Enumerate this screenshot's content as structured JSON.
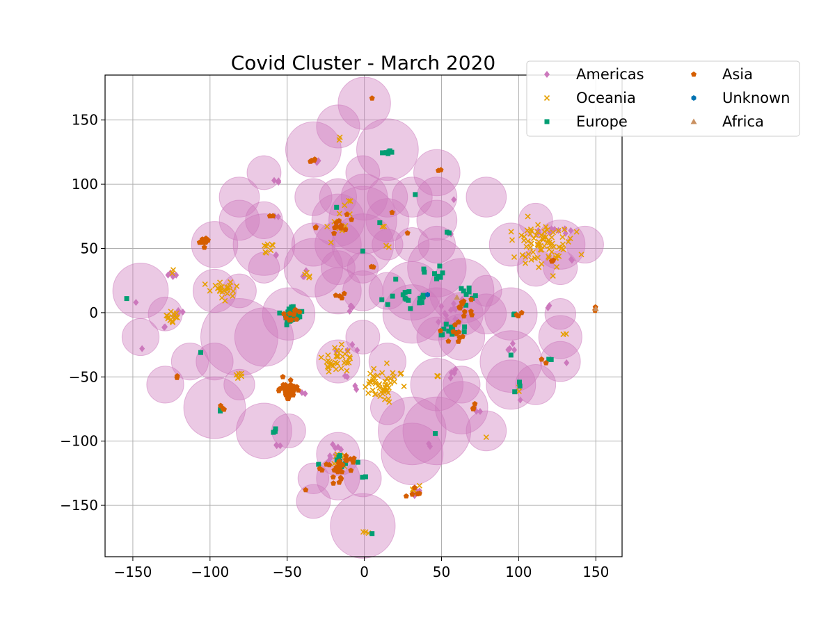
{
  "chart_data": {
    "type": "scatter",
    "title": "Covid Cluster - March 2020",
    "xlabel": "",
    "ylabel": "",
    "xlim": [
      -168,
      167
    ],
    "ylim": [
      -190,
      185
    ],
    "xticks": [
      -150,
      -100,
      -50,
      0,
      50,
      100,
      150
    ],
    "yticks": [
      -150,
      -100,
      -50,
      0,
      50,
      100,
      150
    ],
    "grid": true,
    "legend": {
      "placement": "top-right",
      "columns": 2
    },
    "bubble_color": "#CC78BC",
    "bubbles": [
      {
        "x": 0,
        "y": 163,
        "r": 17
      },
      {
        "x": -17,
        "y": 145,
        "r": 14
      },
      {
        "x": -33,
        "y": 127,
        "r": 18
      },
      {
        "x": 15,
        "y": 127,
        "r": 20
      },
      {
        "x": -1,
        "y": 109,
        "r": 11
      },
      {
        "x": 47,
        "y": 109,
        "r": 15
      },
      {
        "x": -65,
        "y": 109,
        "r": 11
      },
      {
        "x": -81,
        "y": 90,
        "r": 13
      },
      {
        "x": -33,
        "y": 90,
        "r": 12
      },
      {
        "x": -17,
        "y": 90,
        "r": 12
      },
      {
        "x": 0,
        "y": 90,
        "r": 15
      },
      {
        "x": 15,
        "y": 90,
        "r": 13
      },
      {
        "x": 31,
        "y": 90,
        "r": 13
      },
      {
        "x": 47,
        "y": 90,
        "r": 13
      },
      {
        "x": 79,
        "y": 90,
        "r": 13
      },
      {
        "x": -81,
        "y": 72,
        "r": 13
      },
      {
        "x": -65,
        "y": 72,
        "r": 12
      },
      {
        "x": -17,
        "y": 72,
        "r": 17
      },
      {
        "x": -1,
        "y": 72,
        "r": 22
      },
      {
        "x": 15,
        "y": 72,
        "r": 14
      },
      {
        "x": 47,
        "y": 72,
        "r": 13
      },
      {
        "x": 111,
        "y": 72,
        "r": 11
      },
      {
        "x": -97,
        "y": 53,
        "r": 15
      },
      {
        "x": -65,
        "y": 53,
        "r": 20
      },
      {
        "x": -33,
        "y": 53,
        "r": 14
      },
      {
        "x": -17,
        "y": 53,
        "r": 15
      },
      {
        "x": -1,
        "y": 53,
        "r": 20
      },
      {
        "x": 15,
        "y": 53,
        "r": 10
      },
      {
        "x": 31,
        "y": 53,
        "r": 11
      },
      {
        "x": 47,
        "y": 53,
        "r": 12
      },
      {
        "x": 95,
        "y": 53,
        "r": 14
      },
      {
        "x": 127,
        "y": 53,
        "r": 16
      },
      {
        "x": 143,
        "y": 53,
        "r": 12
      },
      {
        "x": -65,
        "y": 35,
        "r": 10
      },
      {
        "x": -33,
        "y": 35,
        "r": 19
      },
      {
        "x": -17,
        "y": 35,
        "r": 11
      },
      {
        "x": -1,
        "y": 35,
        "r": 10
      },
      {
        "x": 47,
        "y": 35,
        "r": 19
      },
      {
        "x": 111,
        "y": 35,
        "r": 12
      },
      {
        "x": 127,
        "y": 35,
        "r": 11
      },
      {
        "x": -145,
        "y": 17,
        "r": 18
      },
      {
        "x": -97,
        "y": 17,
        "r": 14
      },
      {
        "x": -81,
        "y": 17,
        "r": 11
      },
      {
        "x": -17,
        "y": 17,
        "r": 15
      },
      {
        "x": -1,
        "y": 17,
        "r": 13
      },
      {
        "x": 15,
        "y": 17,
        "r": 12
      },
      {
        "x": 31,
        "y": 17,
        "r": 19
      },
      {
        "x": 63,
        "y": 17,
        "r": 21
      },
      {
        "x": 79,
        "y": 17,
        "r": 10
      },
      {
        "x": -129,
        "y": -1,
        "r": 11
      },
      {
        "x": -49,
        "y": -1,
        "r": 17
      },
      {
        "x": 31,
        "y": -1,
        "r": 19
      },
      {
        "x": 47,
        "y": -1,
        "r": 17
      },
      {
        "x": 63,
        "y": -1,
        "r": 14
      },
      {
        "x": 79,
        "y": -1,
        "r": 13
      },
      {
        "x": 95,
        "y": -1,
        "r": 17
      },
      {
        "x": 127,
        "y": -1,
        "r": 10
      },
      {
        "x": -145,
        "y": -19,
        "r": 12
      },
      {
        "x": -81,
        "y": -19,
        "r": 25
      },
      {
        "x": -65,
        "y": -19,
        "r": 19
      },
      {
        "x": -1,
        "y": -19,
        "r": 11
      },
      {
        "x": 47,
        "y": -19,
        "r": 13
      },
      {
        "x": 63,
        "y": -19,
        "r": 15
      },
      {
        "x": 127,
        "y": -19,
        "r": 14
      },
      {
        "x": -113,
        "y": -38,
        "r": 12
      },
      {
        "x": -97,
        "y": -38,
        "r": 12
      },
      {
        "x": -17,
        "y": -38,
        "r": 14
      },
      {
        "x": 15,
        "y": -38,
        "r": 12
      },
      {
        "x": 95,
        "y": -38,
        "r": 20
      },
      {
        "x": 127,
        "y": -38,
        "r": 13
      },
      {
        "x": -129,
        "y": -56,
        "r": 12
      },
      {
        "x": -81,
        "y": -56,
        "r": 10
      },
      {
        "x": 47,
        "y": -56,
        "r": 17
      },
      {
        "x": 63,
        "y": -56,
        "r": 12
      },
      {
        "x": 95,
        "y": -56,
        "r": 16
      },
      {
        "x": 111,
        "y": -56,
        "r": 13
      },
      {
        "x": -97,
        "y": -74,
        "r": 20
      },
      {
        "x": 15,
        "y": -74,
        "r": 11
      },
      {
        "x": 63,
        "y": -74,
        "r": 17
      },
      {
        "x": -65,
        "y": -92,
        "r": 18
      },
      {
        "x": -49,
        "y": -92,
        "r": 11
      },
      {
        "x": 31,
        "y": -92,
        "r": 22
      },
      {
        "x": 47,
        "y": -92,
        "r": 22
      },
      {
        "x": 79,
        "y": -92,
        "r": 13
      },
      {
        "x": -17,
        "y": -110,
        "r": 14
      },
      {
        "x": 31,
        "y": -110,
        "r": 20
      },
      {
        "x": -33,
        "y": -129,
        "r": 10
      },
      {
        "x": -17,
        "y": -129,
        "r": 14
      },
      {
        "x": -1,
        "y": -129,
        "r": 12
      },
      {
        "x": -33,
        "y": -147,
        "r": 11
      },
      {
        "x": -1,
        "y": -166,
        "r": 21
      }
    ],
    "series": [
      {
        "name": "Americas",
        "marker": "diamond",
        "color": "#CC78BC",
        "clusters": [
          {
            "x": 131,
            "y": 63,
            "n": 4,
            "s": 2
          },
          {
            "x": 121,
            "y": 63,
            "n": 3,
            "s": 2
          },
          {
            "x": 111,
            "y": 63,
            "n": 2,
            "s": 2
          },
          {
            "x": 135,
            "y": 40,
            "n": 2,
            "s": 1
          },
          {
            "x": -57,
            "y": 103,
            "n": 3,
            "s": 1
          },
          {
            "x": -57,
            "y": 74,
            "n": 2,
            "s": 1
          },
          {
            "x": -57,
            "y": 46,
            "n": 2,
            "s": 1
          },
          {
            "x": -103,
            "y": 55,
            "n": 2,
            "s": 1
          },
          {
            "x": -124,
            "y": 30,
            "n": 5,
            "s": 2
          },
          {
            "x": -122,
            "y": 0,
            "n": 4,
            "s": 2
          },
          {
            "x": -128,
            "y": -12,
            "n": 2,
            "s": 1
          },
          {
            "x": -148,
            "y": 8,
            "n": 1,
            "s": 0
          },
          {
            "x": -144,
            "y": -28,
            "n": 1,
            "s": 0
          },
          {
            "x": -31,
            "y": 117,
            "n": 2,
            "s": 1
          },
          {
            "x": 58,
            "y": 88,
            "n": 1,
            "s": 0
          },
          {
            "x": -31,
            "y": 67,
            "n": 1,
            "s": 0
          },
          {
            "x": 56,
            "y": 62,
            "n": 2,
            "s": 1
          },
          {
            "x": -40,
            "y": 28,
            "n": 3,
            "s": 2
          },
          {
            "x": -9,
            "y": 6,
            "n": 4,
            "s": 2
          },
          {
            "x": 60,
            "y": 3,
            "n": 10,
            "s": 5
          },
          {
            "x": 50,
            "y": -4,
            "n": 6,
            "s": 3
          },
          {
            "x": -12,
            "y": -26,
            "n": 4,
            "s": 3
          },
          {
            "x": -5,
            "y": -58,
            "n": 2,
            "s": 1
          },
          {
            "x": -12,
            "y": -50,
            "n": 2,
            "s": 1
          },
          {
            "x": 56,
            "y": -46,
            "n": 5,
            "s": 2
          },
          {
            "x": 95,
            "y": -29,
            "n": 4,
            "s": 2
          },
          {
            "x": 101,
            "y": -68,
            "n": 1,
            "s": 0
          },
          {
            "x": 72,
            "y": -76,
            "n": 3,
            "s": 2
          },
          {
            "x": -57,
            "y": -104,
            "n": 3,
            "s": 1
          },
          {
            "x": 42,
            "y": -103,
            "n": 2,
            "s": 1
          },
          {
            "x": 33,
            "y": -138,
            "n": 5,
            "s": 2
          },
          {
            "x": -20,
            "y": -105,
            "n": 4,
            "s": 2
          },
          {
            "x": -22,
            "y": -113,
            "n": 4,
            "s": 2
          },
          {
            "x": 120,
            "y": 5,
            "n": 2,
            "s": 1
          },
          {
            "x": 131,
            "y": -39,
            "n": 1,
            "s": 0
          },
          {
            "x": -40,
            "y": -64,
            "n": 2,
            "s": 1
          }
        ]
      },
      {
        "name": "Oceania",
        "marker": "x",
        "color": "#E69F00",
        "clusters": [
          {
            "x": 117,
            "y": 52,
            "n": 75,
            "s": 9
          },
          {
            "x": -90,
            "y": 19,
            "n": 24,
            "s": 4
          },
          {
            "x": -125,
            "y": -4,
            "n": 14,
            "s": 3
          },
          {
            "x": -17,
            "y": -38,
            "n": 32,
            "s": 5
          },
          {
            "x": 12,
            "y": -55,
            "n": 48,
            "s": 7
          },
          {
            "x": -62,
            "y": 49,
            "n": 8,
            "s": 3
          },
          {
            "x": -37,
            "y": 30,
            "n": 4,
            "s": 2
          },
          {
            "x": -17,
            "y": 65,
            "n": 8,
            "s": 5
          },
          {
            "x": -10,
            "y": 88,
            "n": 4,
            "s": 5
          },
          {
            "x": -82,
            "y": -48,
            "n": 5,
            "s": 2
          },
          {
            "x": -124,
            "y": 32,
            "n": 2,
            "s": 1
          },
          {
            "x": 130,
            "y": -17,
            "n": 2,
            "s": 1
          },
          {
            "x": 100,
            "y": -60,
            "n": 2,
            "s": 1
          },
          {
            "x": 79,
            "y": -97,
            "n": 1,
            "s": 0
          },
          {
            "x": 15,
            "y": 52,
            "n": 2,
            "s": 1
          },
          {
            "x": -17,
            "y": 136,
            "n": 2,
            "s": 1
          },
          {
            "x": -16,
            "y": -115,
            "n": 8,
            "s": 4
          },
          {
            "x": 32,
            "y": -138,
            "n": 4,
            "s": 2
          },
          {
            "x": 48,
            "y": -50,
            "n": 3,
            "s": 1
          },
          {
            "x": 0,
            "y": -171,
            "n": 3,
            "s": 1
          },
          {
            "x": 12,
            "y": 68,
            "n": 2,
            "s": 1
          }
        ]
      },
      {
        "name": "Europe",
        "marker": "square",
        "color": "#029E73",
        "clusters": [
          {
            "x": -47,
            "y": -2,
            "n": 45,
            "s": 3
          },
          {
            "x": 55,
            "y": -15,
            "n": 12,
            "s": 4
          },
          {
            "x": 28,
            "y": 12,
            "n": 12,
            "s": 5
          },
          {
            "x": 45,
            "y": 30,
            "n": 8,
            "s": 4
          },
          {
            "x": 66,
            "y": 15,
            "n": 8,
            "s": 4
          },
          {
            "x": 15,
            "y": 125,
            "n": 6,
            "s": 2
          },
          {
            "x": 55,
            "y": 63,
            "n": 2,
            "s": 1
          },
          {
            "x": 33,
            "y": 92,
            "n": 1,
            "s": 0
          },
          {
            "x": -18,
            "y": 82,
            "n": 1,
            "s": 0
          },
          {
            "x": -1,
            "y": 48,
            "n": 1,
            "s": 0
          },
          {
            "x": 10,
            "y": 70,
            "n": 1,
            "s": 0
          },
          {
            "x": -154,
            "y": 11,
            "n": 1,
            "s": 0
          },
          {
            "x": -106,
            "y": -31,
            "n": 1,
            "s": 0
          },
          {
            "x": -93,
            "y": -75,
            "n": 2,
            "s": 1
          },
          {
            "x": -58,
            "y": -92,
            "n": 3,
            "s": 1
          },
          {
            "x": 46,
            "y": -94,
            "n": 1,
            "s": 0
          },
          {
            "x": 100,
            "y": -60,
            "n": 3,
            "s": 2
          },
          {
            "x": 98,
            "y": -2,
            "n": 2,
            "s": 1
          },
          {
            "x": 95,
            "y": -33,
            "n": 1,
            "s": 0
          },
          {
            "x": 120,
            "y": -37,
            "n": 2,
            "s": 1
          },
          {
            "x": -15,
            "y": -118,
            "n": 10,
            "s": 4
          },
          {
            "x": 0,
            "y": -128,
            "n": 2,
            "s": 1
          },
          {
            "x": 5,
            "y": -172,
            "n": 1,
            "s": 0
          },
          {
            "x": 15,
            "y": 8,
            "n": 2,
            "s": 2
          },
          {
            "x": 40,
            "y": 10,
            "n": 3,
            "s": 3
          }
        ]
      },
      {
        "name": "Asia",
        "marker": "pentagon",
        "color": "#D55E00",
        "clusters": [
          {
            "x": -104,
            "y": 56,
            "n": 12,
            "s": 2
          },
          {
            "x": -49,
            "y": -60,
            "n": 40,
            "s": 3
          },
          {
            "x": -45,
            "y": 0,
            "n": 10,
            "s": 3
          },
          {
            "x": -13,
            "y": 70,
            "n": 10,
            "s": 4
          },
          {
            "x": -17,
            "y": -120,
            "n": 30,
            "s": 5
          },
          {
            "x": 63,
            "y": 3,
            "n": 10,
            "s": 4
          },
          {
            "x": 60,
            "y": -16,
            "n": 10,
            "s": 4
          },
          {
            "x": -32,
            "y": 119,
            "n": 4,
            "s": 2
          },
          {
            "x": 5,
            "y": 167,
            "n": 1,
            "s": 0
          },
          {
            "x": 50,
            "y": 112,
            "n": 2,
            "s": 1
          },
          {
            "x": -15,
            "y": 12,
            "n": 4,
            "s": 2
          },
          {
            "x": -91,
            "y": -74,
            "n": 3,
            "s": 1
          },
          {
            "x": -59,
            "y": 75,
            "n": 2,
            "s": 1
          },
          {
            "x": -32,
            "y": 67,
            "n": 2,
            "s": 1
          },
          {
            "x": 5,
            "y": 35,
            "n": 2,
            "s": 1
          },
          {
            "x": -122,
            "y": -50,
            "n": 2,
            "s": 1
          },
          {
            "x": 70,
            "y": -75,
            "n": 4,
            "s": 2
          },
          {
            "x": 117,
            "y": -37,
            "n": 2,
            "s": 1
          },
          {
            "x": 123,
            "y": 40,
            "n": 3,
            "s": 1
          },
          {
            "x": 100,
            "y": -2,
            "n": 3,
            "s": 1
          },
          {
            "x": 32,
            "y": -140,
            "n": 5,
            "s": 2
          },
          {
            "x": -38,
            "y": -138,
            "n": 1,
            "s": 0
          },
          {
            "x": 150,
            "y": 3,
            "n": 2,
            "s": 1
          },
          {
            "x": 28,
            "y": 62,
            "n": 1,
            "s": 0
          },
          {
            "x": 18,
            "y": 78,
            "n": 1,
            "s": 0
          }
        ]
      },
      {
        "name": "Unknown",
        "marker": "hexagon",
        "color": "#0173B2",
        "clusters": [
          {
            "x": 41,
            "y": 14,
            "n": 1,
            "s": 0
          }
        ]
      },
      {
        "name": "Africa",
        "marker": "triangle",
        "color": "#CA9161",
        "clusters": [
          {
            "x": 150,
            "y": 3,
            "n": 1,
            "s": 0
          },
          {
            "x": 60,
            "y": 12,
            "n": 1,
            "s": 0
          }
        ]
      }
    ]
  }
}
